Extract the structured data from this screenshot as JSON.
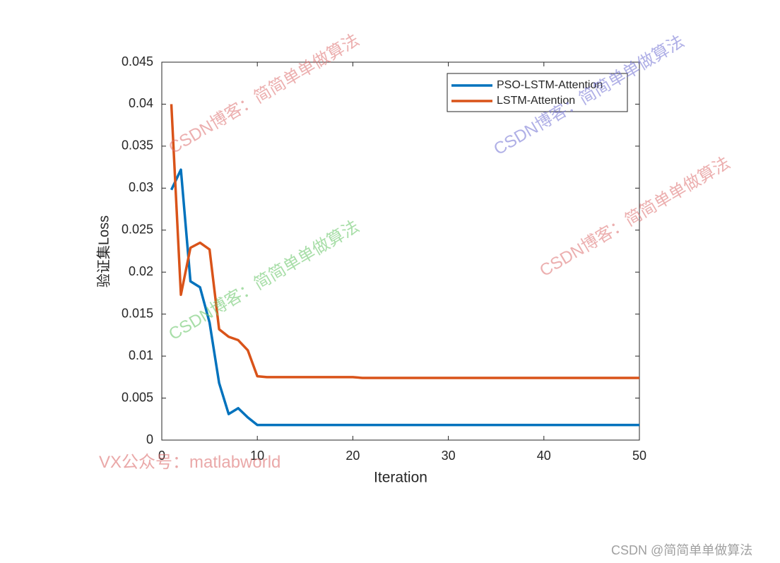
{
  "chart_data": {
    "type": "line",
    "xlabel": "Iteration",
    "ylabel": "验证集Loss",
    "x": [
      1,
      2,
      3,
      4,
      5,
      6,
      7,
      8,
      9,
      10,
      11,
      12,
      13,
      14,
      15,
      16,
      17,
      18,
      19,
      20,
      21,
      22,
      23,
      24,
      25,
      26,
      27,
      28,
      29,
      30,
      31,
      32,
      33,
      34,
      35,
      36,
      37,
      38,
      39,
      40,
      41,
      42,
      43,
      44,
      45,
      46,
      47,
      48,
      49,
      50
    ],
    "series": [
      {
        "name": "PSO-LSTM-Attention",
        "color": "#0072BD",
        "values": [
          0.0298,
          0.0322,
          0.0189,
          0.0182,
          0.014,
          0.0068,
          0.0031,
          0.0038,
          0.0027,
          0.0018,
          0.0018,
          0.0018,
          0.0018,
          0.0018,
          0.0018,
          0.0018,
          0.0018,
          0.0018,
          0.0018,
          0.0018,
          0.0018,
          0.0018,
          0.0018,
          0.0018,
          0.0018,
          0.0018,
          0.0018,
          0.0018,
          0.0018,
          0.0018,
          0.0018,
          0.0018,
          0.0018,
          0.0018,
          0.0018,
          0.0018,
          0.0018,
          0.0018,
          0.0018,
          0.0018,
          0.0018,
          0.0018,
          0.0018,
          0.0018,
          0.0018,
          0.0018,
          0.0018,
          0.0018,
          0.0018,
          0.0018
        ]
      },
      {
        "name": "LSTM-Attention",
        "color": "#D95319",
        "values": [
          0.04,
          0.0173,
          0.0229,
          0.0235,
          0.0227,
          0.0132,
          0.0123,
          0.0119,
          0.0107,
          0.0076,
          0.0075,
          0.0075,
          0.0075,
          0.0075,
          0.0075,
          0.0075,
          0.0075,
          0.0075,
          0.0075,
          0.0075,
          0.0074,
          0.0074,
          0.0074,
          0.0074,
          0.0074,
          0.0074,
          0.0074,
          0.0074,
          0.0074,
          0.0074,
          0.0074,
          0.0074,
          0.0074,
          0.0074,
          0.0074,
          0.0074,
          0.0074,
          0.0074,
          0.0074,
          0.0074,
          0.0074,
          0.0074,
          0.0074,
          0.0074,
          0.0074,
          0.0074,
          0.0074,
          0.0074,
          0.0074,
          0.0074
        ]
      }
    ],
    "xlim": [
      0,
      50
    ],
    "xticks": [
      0,
      10,
      20,
      30,
      40,
      50
    ],
    "ylim": [
      0,
      0.045
    ],
    "yticks": [
      0,
      0.005,
      0.01,
      0.015,
      0.02,
      0.025,
      0.03,
      0.035,
      0.04,
      0.045
    ],
    "grid": false,
    "legend": "upper right"
  },
  "watermarks": [
    "CSDN博客：简简单单做算法",
    "CSDN博客：简简单单做算法",
    "CSDN博客：简简单单做算法",
    "CSDN博客：简简单单做算法",
    "VX公众号：matlabworld",
    "CSDN @简简单单做算法"
  ]
}
